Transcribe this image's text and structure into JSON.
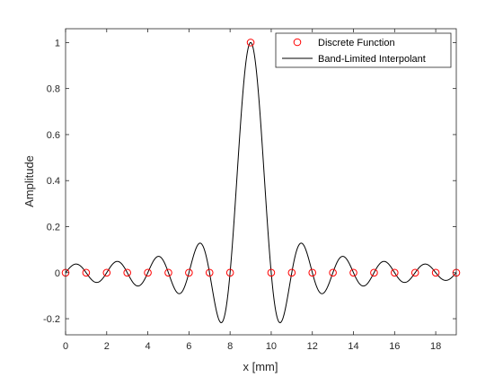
{
  "chart_data": {
    "type": "line",
    "xlabel": "x [mm]",
    "ylabel": "Amplitude",
    "xlim": [
      0,
      19
    ],
    "ylim": [
      -0.27,
      1.06
    ],
    "xticks": [
      0,
      2,
      4,
      6,
      8,
      10,
      12,
      14,
      16,
      18
    ],
    "yticks": [
      -0.2,
      0,
      0.2,
      0.4,
      0.6,
      0.8,
      1
    ],
    "ytick_labels": [
      "-0.2",
      "0",
      "0.2",
      "0.4",
      "0.6",
      "0.8",
      "1"
    ],
    "grid": false,
    "legend_position": "top-right",
    "series": [
      {
        "name": "Discrete Function",
        "style": "markers",
        "marker": "circle",
        "color": "#ff0000",
        "x": [
          0,
          1,
          2,
          3,
          4,
          5,
          6,
          7,
          8,
          9,
          10,
          11,
          12,
          13,
          14,
          15,
          16,
          17,
          18,
          19
        ],
        "y": [
          0,
          0,
          0,
          0,
          0,
          0,
          0,
          0,
          0,
          1,
          0,
          0,
          0,
          0,
          0,
          0,
          0,
          0,
          0,
          0
        ]
      },
      {
        "name": "Band-Limited Interpolant",
        "style": "line",
        "color": "#000000",
        "function": "sinc",
        "center": 9,
        "x_range": [
          0,
          19
        ]
      }
    ]
  }
}
